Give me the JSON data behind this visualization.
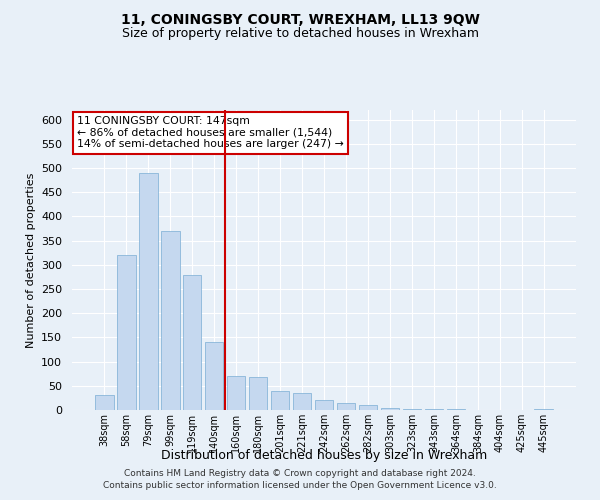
{
  "title1": "11, CONINGSBY COURT, WREXHAM, LL13 9QW",
  "title2": "Size of property relative to detached houses in Wrexham",
  "xlabel": "Distribution of detached houses by size in Wrexham",
  "ylabel": "Number of detached properties",
  "categories": [
    "38sqm",
    "58sqm",
    "79sqm",
    "99sqm",
    "119sqm",
    "140sqm",
    "160sqm",
    "180sqm",
    "201sqm",
    "221sqm",
    "242sqm",
    "262sqm",
    "282sqm",
    "303sqm",
    "323sqm",
    "343sqm",
    "364sqm",
    "384sqm",
    "404sqm",
    "425sqm",
    "445sqm"
  ],
  "values": [
    30,
    320,
    490,
    370,
    280,
    140,
    70,
    68,
    40,
    35,
    20,
    14,
    10,
    5,
    3,
    2,
    2,
    1,
    1,
    1,
    2
  ],
  "bar_color": "#c5d8ef",
  "bar_edge_color": "#7aadd4",
  "vline_x": 5.5,
  "vline_color": "#cc0000",
  "annotation_title": "11 CONINGSBY COURT: 147sqm",
  "annotation_line1": "← 86% of detached houses are smaller (1,544)",
  "annotation_line2": "14% of semi-detached houses are larger (247) →",
  "annotation_box_color": "#ffffff",
  "annotation_box_edge": "#cc0000",
  "ylim": [
    0,
    620
  ],
  "yticks": [
    0,
    50,
    100,
    150,
    200,
    250,
    300,
    350,
    400,
    450,
    500,
    550,
    600
  ],
  "footer1": "Contains HM Land Registry data © Crown copyright and database right 2024.",
  "footer2": "Contains public sector information licensed under the Open Government Licence v3.0.",
  "bg_color": "#e8f0f8",
  "plot_bg_color": "#e8f0f8",
  "title_fontsize": 10,
  "subtitle_fontsize": 9
}
